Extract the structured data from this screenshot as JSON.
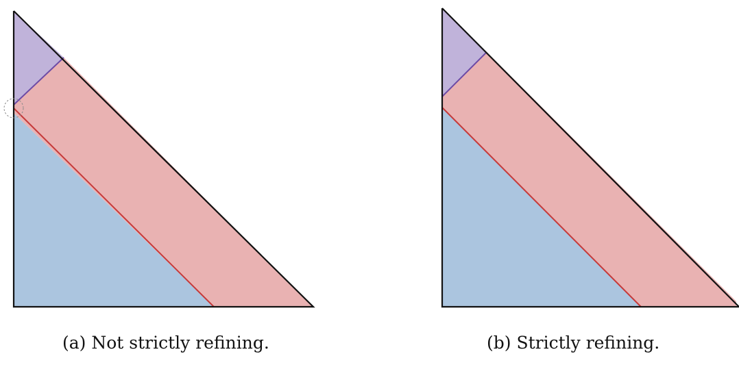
{
  "colors": {
    "blue_region": "#abc5df",
    "red_region": "#e9b2b2",
    "purple_region": "#c0b3da",
    "outline": "#111111",
    "red_edge": "#c63a3a",
    "purple_edge": "#6d4ba6",
    "highlight_circle": "#888888"
  },
  "panels": [
    {
      "label": "(a)",
      "caption": "(a) Not strictly refining.",
      "strictly_refining": false,
      "regions": [
        "blue",
        "red",
        "purple"
      ],
      "marker": "dashed circle at vertex where red band meets the left edge"
    },
    {
      "label": "(b)",
      "caption": "(b) Strictly refining.",
      "strictly_refining": true,
      "regions": [
        "blue",
        "red",
        "purple"
      ],
      "marker": null
    }
  ]
}
